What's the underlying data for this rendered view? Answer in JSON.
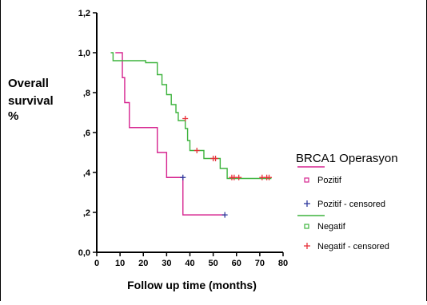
{
  "chart_data": {
    "type": "line",
    "subtype": "kaplan-meier",
    "xlabel": "Follow up time (months)",
    "ylabel_lines": [
      "Overall",
      "survival",
      "%"
    ],
    "xlim": [
      0,
      80
    ],
    "ylim": [
      0,
      1.2
    ],
    "x_ticks": [
      0,
      10,
      20,
      30,
      40,
      50,
      60,
      70,
      80
    ],
    "y_ticks": [
      0.0,
      0.2,
      0.4,
      0.6,
      0.8,
      1.0,
      1.2
    ],
    "y_tick_labels": [
      "0,0",
      ",2",
      ",4",
      ",6",
      ",8",
      "1,0",
      "1,2"
    ],
    "grid": false,
    "legend_title": "BRCA1 Operasyon",
    "legend_position": "right",
    "legend_entries": [
      {
        "label": "Pozitif",
        "marker": "square"
      },
      {
        "label": "Pozitif - censored",
        "marker": "plus"
      },
      {
        "label": "Negatif",
        "marker": "square"
      },
      {
        "label": "Negatif - censored",
        "marker": "plus"
      }
    ],
    "series": [
      {
        "name": "Pozitif",
        "color": "#d6248f",
        "steps": [
          [
            8,
            1.0
          ],
          [
            11,
            0.875
          ],
          [
            12,
            0.75
          ],
          [
            14,
            0.625
          ],
          [
            26,
            0.5
          ],
          [
            30,
            0.375
          ],
          [
            37,
            0.1875
          ],
          [
            55,
            0.1875
          ]
        ],
        "censored": [
          [
            37,
            0.375
          ],
          [
            55,
            0.1875
          ]
        ]
      },
      {
        "name": "Negatif",
        "color": "#3db33d",
        "steps": [
          [
            6,
            1.0
          ],
          [
            7,
            0.96
          ],
          [
            21,
            0.95
          ],
          [
            26,
            0.89
          ],
          [
            28,
            0.84
          ],
          [
            30,
            0.79
          ],
          [
            32,
            0.74
          ],
          [
            34,
            0.7
          ],
          [
            35,
            0.66
          ],
          [
            38,
            0.62
          ],
          [
            39,
            0.56
          ],
          [
            40,
            0.51
          ],
          [
            44,
            0.51
          ],
          [
            46,
            0.47
          ],
          [
            48,
            0.47
          ],
          [
            53,
            0.42
          ],
          [
            56,
            0.37
          ],
          [
            75,
            0.37
          ]
        ],
        "censored": [
          [
            38,
            0.67
          ],
          [
            43,
            0.51
          ],
          [
            50,
            0.47
          ],
          [
            51,
            0.47
          ],
          [
            58,
            0.375
          ],
          [
            59,
            0.375
          ],
          [
            61,
            0.375
          ],
          [
            71,
            0.375
          ],
          [
            73,
            0.375
          ],
          [
            74,
            0.375
          ]
        ]
      }
    ],
    "censor_color": "#e8323c",
    "censor_color_pozitif": "#2f3a9e"
  }
}
